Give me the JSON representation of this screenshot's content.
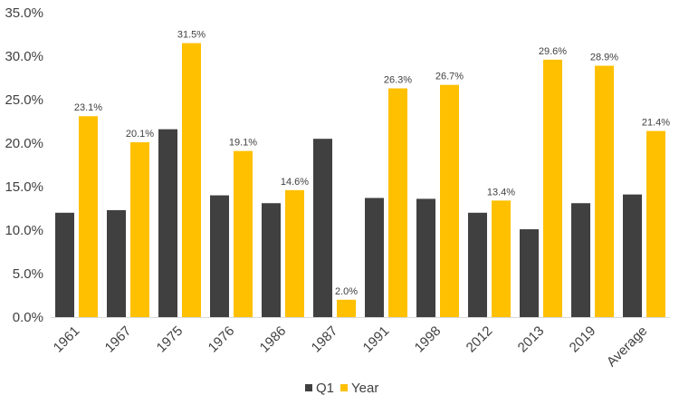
{
  "chart_data": {
    "type": "bar",
    "categories": [
      "1961",
      "1967",
      "1975",
      "1976",
      "1986",
      "1987",
      "1991",
      "1998",
      "2012",
      "2013",
      "2019",
      "Average"
    ],
    "series": [
      {
        "name": "Q1",
        "color": "#404040",
        "values": [
          12.0,
          12.3,
          21.6,
          14.0,
          13.1,
          20.5,
          13.7,
          13.6,
          12.0,
          10.1,
          13.1,
          14.1
        ]
      },
      {
        "name": "Year",
        "color": "#FFC000",
        "values": [
          23.1,
          20.1,
          31.5,
          19.1,
          14.6,
          2.0,
          26.3,
          26.7,
          13.4,
          29.6,
          28.9,
          21.4
        ],
        "data_labels": [
          "23.1%",
          "20.1%",
          "31.5%",
          "19.1%",
          "14.6%",
          "2.0%",
          "26.3%",
          "26.7%",
          "13.4%",
          "29.6%",
          "28.9%",
          "21.4%"
        ]
      }
    ],
    "y_ticks": [
      "0.0%",
      "5.0%",
      "10.0%",
      "15.0%",
      "20.0%",
      "25.0%",
      "30.0%",
      "35.0%"
    ],
    "ylim": [
      0,
      35
    ],
    "grid": false,
    "legend_position": "bottom",
    "title": "",
    "xlabel": "",
    "ylabel": ""
  }
}
